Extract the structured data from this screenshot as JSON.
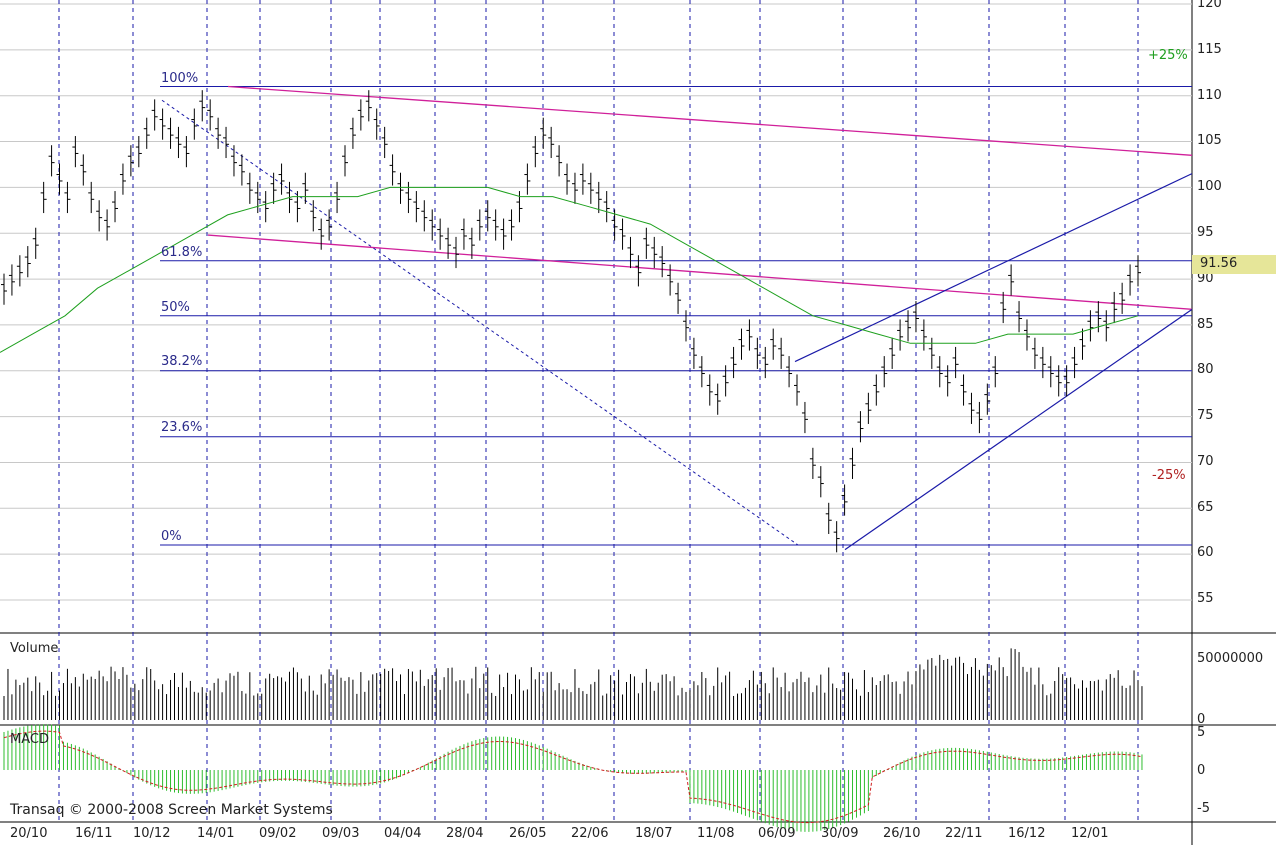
{
  "chart_data": {
    "type": "bar",
    "title": "",
    "price_axis": {
      "ticks": [
        "120",
        "115",
        "110",
        "105",
        "100",
        "95",
        "90",
        "85",
        "80",
        "75",
        "70",
        "65",
        "60",
        "55"
      ],
      "ylim": [
        52,
        120
      ]
    },
    "x_ticks": [
      "20/10",
      "16/11",
      "10/12",
      "14/01",
      "09/02",
      "09/03",
      "04/04",
      "28/04",
      "26/05",
      "22/06",
      "18/07",
      "11/08",
      "06/09",
      "30/09",
      "26/10",
      "22/11",
      "16/12",
      "12/01"
    ],
    "fibonacci_levels": [
      {
        "label": "100%",
        "price": 111
      },
      {
        "label": "61.8%",
        "price": 92
      },
      {
        "label": "50%",
        "price": 86
      },
      {
        "label": "38.2%",
        "price": 80
      },
      {
        "label": "23.6%",
        "price": 72.8
      },
      {
        "label": "0%",
        "price": 61
      }
    ],
    "last_price": "91.56",
    "percent_markers": {
      "up": "+25%",
      "down": "-25%"
    },
    "price_bars": [
      89,
      90,
      91,
      92,
      94,
      99,
      103,
      101,
      99,
      104,
      102,
      99,
      97,
      96,
      98,
      101,
      103,
      104,
      106,
      108,
      107,
      106,
      105,
      104,
      107,
      109,
      108,
      106,
      105,
      103,
      102,
      100,
      99,
      98,
      100,
      101,
      99,
      98,
      100,
      97,
      95,
      96,
      99,
      103,
      106,
      108,
      109,
      107,
      105,
      102,
      100,
      99,
      98,
      97,
      96,
      95,
      94,
      93,
      95,
      94,
      96,
      97,
      96,
      95,
      96,
      98,
      101,
      104,
      106,
      105,
      103,
      101,
      100,
      101,
      100,
      99,
      98,
      96,
      95,
      93,
      91,
      94,
      93,
      92,
      90,
      88,
      85,
      82,
      80,
      78,
      77,
      79,
      81,
      83,
      84,
      82,
      81,
      83,
      82,
      80,
      78,
      75,
      70,
      68,
      64,
      62,
      66,
      70,
      74,
      76,
      78,
      80,
      82,
      84,
      85,
      86,
      84,
      82,
      80,
      79,
      81,
      78,
      76,
      75,
      77,
      80,
      87,
      90,
      86,
      84,
      82,
      81,
      80,
      79,
      79,
      81,
      83,
      85,
      86,
      85,
      87,
      88,
      90,
      91
    ],
    "moving_average": {
      "name": "",
      "values": [
        82,
        84,
        86,
        89,
        91,
        93,
        95,
        97,
        98,
        99,
        99,
        99,
        100,
        100,
        100,
        100,
        99,
        99,
        98,
        97,
        96,
        94,
        92,
        90,
        88,
        86,
        85,
        84,
        83,
        83,
        83,
        84,
        84,
        84,
        85,
        86
      ]
    },
    "volume": {
      "title": "Volume",
      "ticks": [
        "50000000",
        "0"
      ],
      "ymax": 60000000
    },
    "macd": {
      "title": "MACD",
      "ticks": [
        "5",
        "0",
        "-5"
      ],
      "ylim": [
        -6,
        6
      ]
    }
  },
  "copyright": "Transaq © 2000-2008 Screen Market Systems",
  "colors": {
    "price_bars": "#000000",
    "ma": "#1ea01e",
    "fib": "#1a1aa8",
    "channel": "#d0209a",
    "trend": "#1a1aa8",
    "grid": "#c8c8c8",
    "vline": "#1a1aa8",
    "macd_hist": "#2ebd2e",
    "macd_signal": "#d02020",
    "price_box": "#e6e699"
  }
}
